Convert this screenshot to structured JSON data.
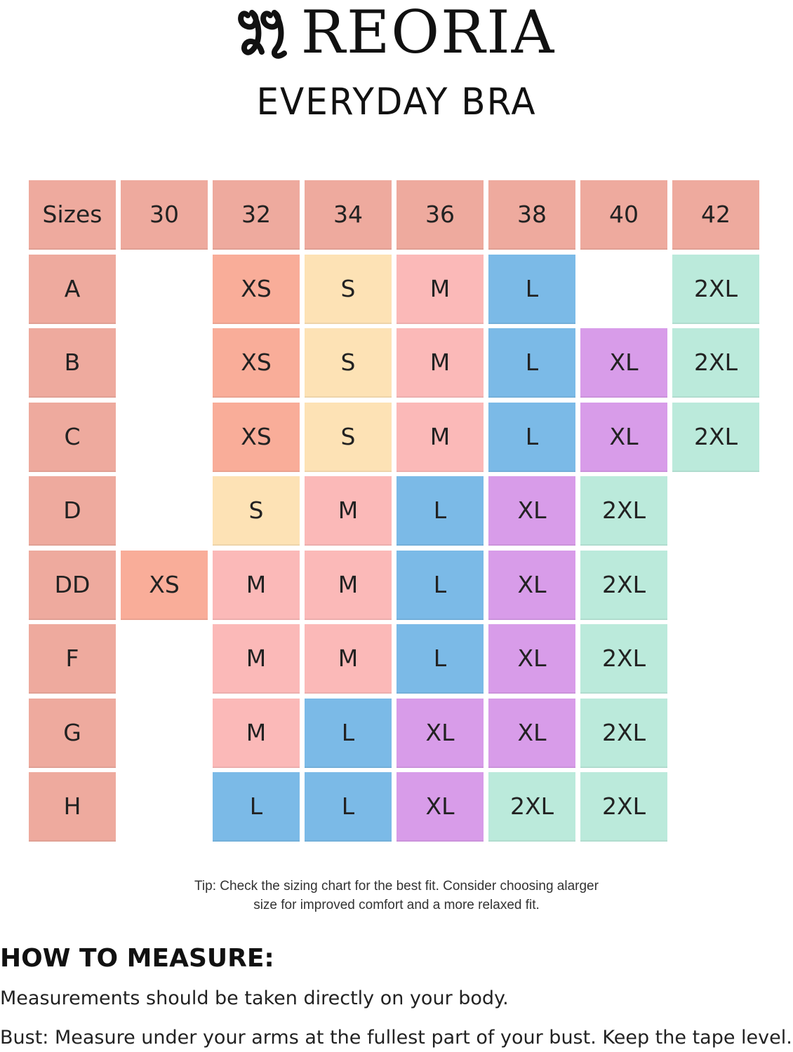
{
  "brand": {
    "name": "REORIA",
    "logo_icon": "reoria-mark-icon"
  },
  "subtitle": "EVERYDAY BRA",
  "colors": {
    "header": "#eeaa9e",
    "XS": "#f9ad99",
    "S": "#fde2b5",
    "M": "#fbb9b8",
    "L": "#7bbae7",
    "XL": "#d89ce9",
    "2XL": "#bbeadb"
  },
  "table": {
    "corner": "Sizes",
    "bands": [
      "30",
      "32",
      "34",
      "36",
      "38",
      "40",
      "42"
    ],
    "rows": [
      {
        "cup": "A",
        "sizes": [
          "",
          "XS",
          "S",
          "M",
          "L",
          "",
          "2XL"
        ]
      },
      {
        "cup": "B",
        "sizes": [
          "",
          "XS",
          "S",
          "M",
          "L",
          "XL",
          "2XL"
        ]
      },
      {
        "cup": "C",
        "sizes": [
          "",
          "XS",
          "S",
          "M",
          "L",
          "XL",
          "2XL"
        ]
      },
      {
        "cup": "D",
        "sizes": [
          "",
          "S",
          "M",
          "L",
          "XL",
          "2XL",
          ""
        ]
      },
      {
        "cup": "DD",
        "sizes": [
          "XS",
          "M",
          "M",
          "L",
          "XL",
          "2XL",
          ""
        ]
      },
      {
        "cup": "F",
        "sizes": [
          "",
          "M",
          "M",
          "L",
          "XL",
          "2XL",
          ""
        ]
      },
      {
        "cup": "G",
        "sizes": [
          "",
          "M",
          "L",
          "XL",
          "XL",
          "2XL",
          ""
        ]
      },
      {
        "cup": "H",
        "sizes": [
          "",
          "L",
          "L",
          "XL",
          "2XL",
          "2XL",
          ""
        ]
      }
    ]
  },
  "tip": {
    "line1": "Tip: Check the sizing chart for the best fit. Consider choosing alarger",
    "line2": "size for improved comfort and a more relaxed fit."
  },
  "measure": {
    "title": "HOW TO MEASURE:",
    "line1": "Measurements should be taken directly on your body.",
    "line2": "Bust: Measure under your arms at the fullest part of your bust. Keep the tape level."
  }
}
